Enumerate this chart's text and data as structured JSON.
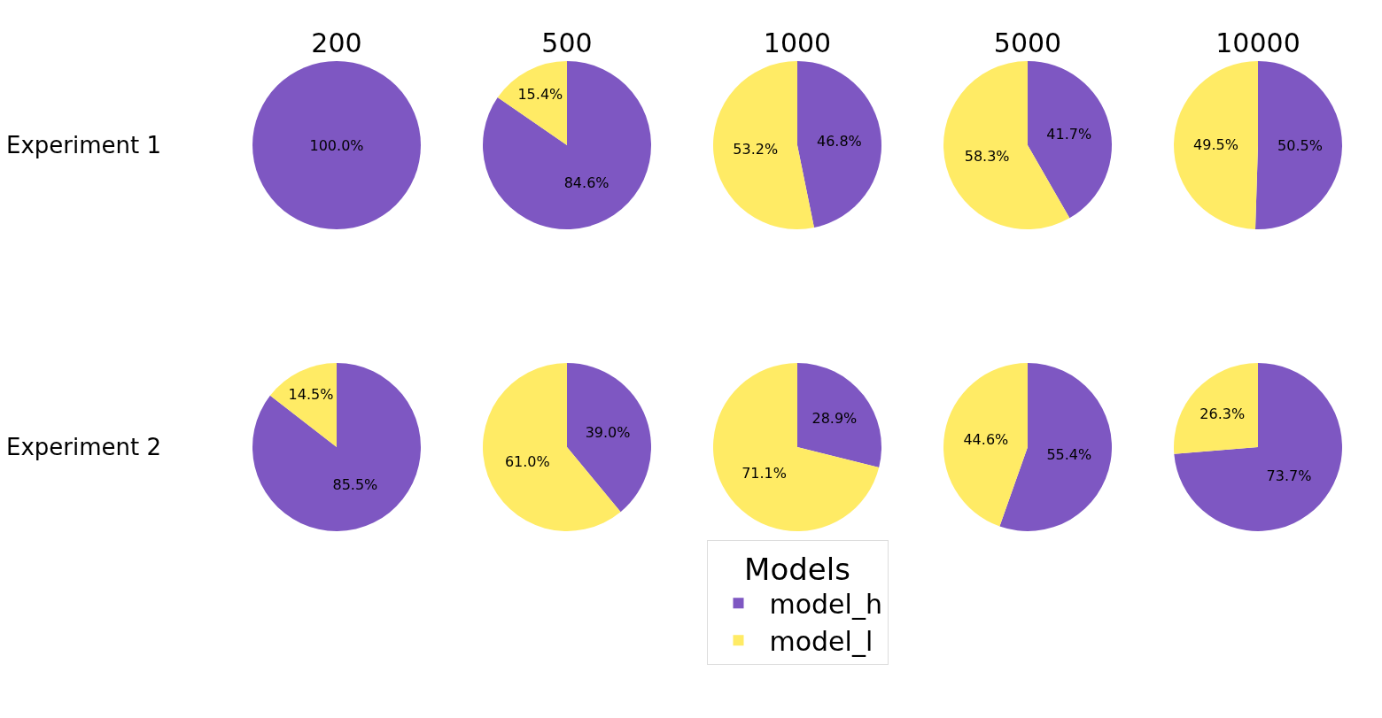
{
  "chart_data": [
    {
      "type": "pie",
      "title": "200",
      "ylabel": "Experiment 1",
      "values": [
        100.0,
        0
      ],
      "colors": [
        "#7e57c2",
        "#ffeb65"
      ],
      "value_labels": [
        "100.0%",
        null
      ]
    },
    {
      "type": "pie",
      "title": "500",
      "values": [
        84.6,
        15.4
      ],
      "colors": [
        "#7e57c2",
        "#ffeb65"
      ],
      "value_labels": [
        "84.6%",
        "15.4%"
      ]
    },
    {
      "type": "pie",
      "title": "1000",
      "values": [
        46.8,
        53.2
      ],
      "colors": [
        "#7e57c2",
        "#ffeb65"
      ],
      "value_labels": [
        "46.8%",
        "53.2%"
      ]
    },
    {
      "type": "pie",
      "title": "5000",
      "values": [
        41.7,
        58.3
      ],
      "colors": [
        "#7e57c2",
        "#ffeb65"
      ],
      "value_labels": [
        "41.7%",
        "58.3%"
      ]
    },
    {
      "type": "pie",
      "title": "10000",
      "values": [
        50.5,
        49.5
      ],
      "colors": [
        "#7e57c2",
        "#ffeb65"
      ],
      "value_labels": [
        "50.5%",
        "49.5%"
      ]
    },
    {
      "type": "pie",
      "ylabel": "Experiment 2",
      "values": [
        85.5,
        14.5
      ],
      "colors": [
        "#7e57c2",
        "#ffeb65"
      ],
      "value_labels": [
        "85.5%",
        "14.5%"
      ]
    },
    {
      "type": "pie",
      "values": [
        39.0,
        61.0
      ],
      "colors": [
        "#7e57c2",
        "#ffeb65"
      ],
      "value_labels": [
        "39.0%",
        "61.0%"
      ]
    },
    {
      "type": "pie",
      "categories": [
        "model_h",
        "model_l"
      ],
      "values": [
        28.9,
        71.1
      ],
      "colors": [
        "#7e57c2",
        "#ffeb65"
      ],
      "value_labels": [
        "28.9%",
        "71.1%"
      ],
      "legend": "bottom",
      "legend_title": "Models"
    },
    {
      "type": "pie",
      "values": [
        55.4,
        44.6
      ],
      "colors": [
        "#7e57c2",
        "#ffeb65"
      ],
      "value_labels": [
        "55.4%",
        "44.6%"
      ]
    },
    {
      "type": "pie",
      "values": [
        73.7,
        26.3
      ],
      "colors": [
        "#7e57c2",
        "#ffeb65"
      ],
      "value_labels": [
        "73.7%",
        "26.3%"
      ]
    }
  ]
}
